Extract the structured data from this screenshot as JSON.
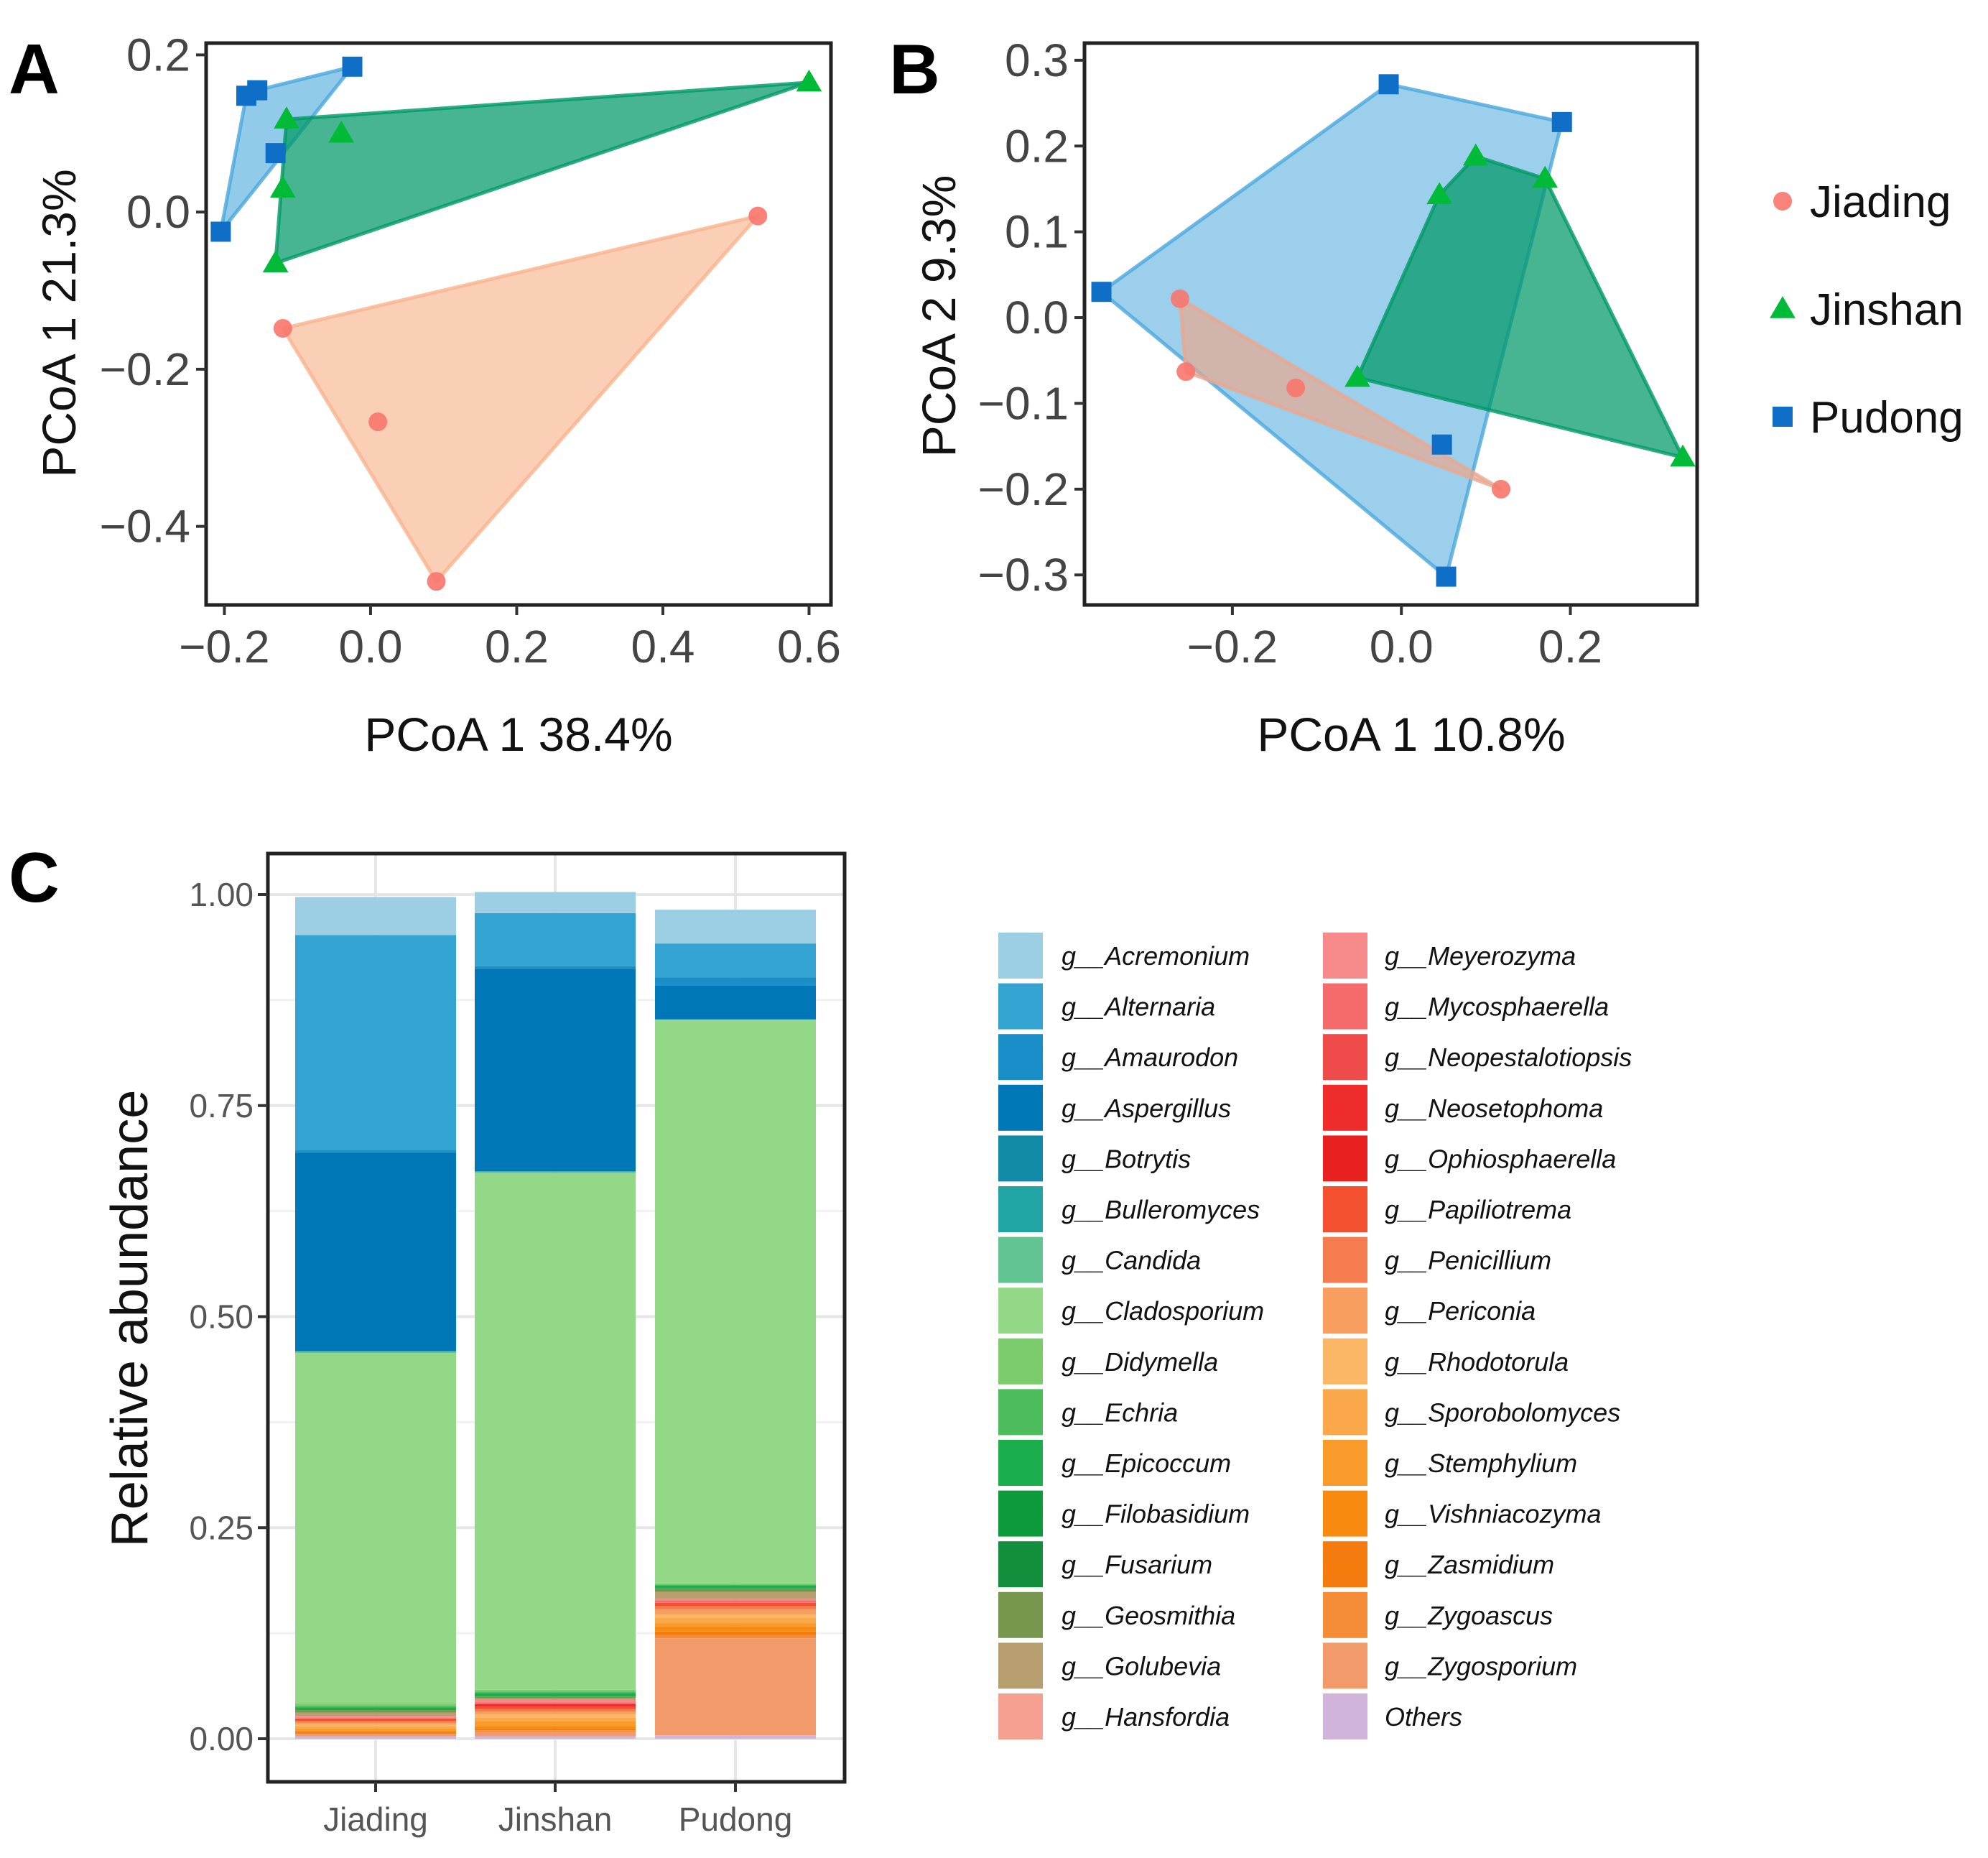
{
  "colors": {
    "Jiading": "#f8766d",
    "Jinshan": "#00ba38",
    "Pudong": "#0f6fc6",
    "Jiading_fill": "#f9b48f",
    "Jinshan_fill": "#009966",
    "Pudong_fill": "#4aa8dc",
    "JiadingB_fill": "#e8a890"
  },
  "chart_data": [
    {
      "panel": "A",
      "type": "scatter",
      "xlabel": "PCoA 1    38.4%",
      "ylabel": "PCoA 1   21.3%",
      "xlim": [
        -0.225,
        0.63
      ],
      "ylim": [
        -0.5,
        0.215
      ],
      "xticks": [
        -0.2,
        0.0,
        0.2,
        0.4,
        0.6
      ],
      "xtick_labels": [
        "−0.2",
        "0.0",
        "0.2",
        "0.4",
        "0.6"
      ],
      "yticks": [
        0.2,
        0.0,
        -0.2,
        -0.4
      ],
      "ytick_labels": [
        "0.2",
        "0.0",
        "−0.2",
        "−0.4"
      ],
      "series": [
        {
          "name": "Jiading",
          "marker": "circle",
          "x": [
            0.53,
            -0.12,
            0.01,
            0.09
          ],
          "y": [
            -0.005,
            -0.148,
            -0.267,
            -0.47
          ],
          "hull": [
            0,
            3,
            1
          ]
        },
        {
          "name": "Jinshan",
          "marker": "triangle",
          "x": [
            0.6,
            -0.115,
            -0.04,
            -0.12,
            -0.13
          ],
          "y": [
            0.165,
            0.118,
            0.1,
            0.03,
            -0.065
          ],
          "hull": [
            0,
            4,
            1
          ]
        },
        {
          "name": "Pudong",
          "marker": "square",
          "x": [
            -0.025,
            -0.17,
            -0.155,
            -0.13,
            -0.205
          ],
          "y": [
            0.185,
            0.148,
            0.155,
            0.075,
            -0.025
          ],
          "hull": [
            0,
            4,
            1,
            2
          ]
        }
      ]
    },
    {
      "panel": "B",
      "type": "scatter",
      "xlabel": "PCoA 1    10.8%",
      "ylabel": "PCoA 2    9.3%",
      "xlim": [
        -0.375,
        0.35
      ],
      "ylim": [
        -0.335,
        0.32
      ],
      "xticks": [
        -0.2,
        0.0,
        0.2
      ],
      "xtick_labels": [
        "−0.2",
        "0.0",
        "0.2"
      ],
      "yticks": [
        0.3,
        0.2,
        0.1,
        0.0,
        -0.1,
        -0.2,
        -0.3
      ],
      "ytick_labels": [
        "0.3",
        "0.2",
        "0.1",
        "0.0",
        "−0.1",
        "−0.2",
        "−0.3"
      ],
      "series": [
        {
          "name": "Jiading",
          "marker": "circle",
          "x": [
            -0.262,
            -0.255,
            -0.125,
            0.118
          ],
          "y": [
            0.022,
            -0.063,
            -0.082,
            -0.2
          ],
          "hull": [
            0,
            1,
            3
          ]
        },
        {
          "name": "Jinshan",
          "marker": "triangle",
          "x": [
            0.088,
            0.17,
            0.045,
            -0.052,
            0.333
          ],
          "y": [
            0.188,
            0.162,
            0.143,
            -0.07,
            -0.163
          ],
          "hull": [
            0,
            1,
            4,
            3,
            2
          ]
        },
        {
          "name": "Pudong",
          "marker": "square",
          "x": [
            -0.015,
            0.19,
            -0.355,
            0.048,
            0.053
          ],
          "y": [
            0.272,
            0.228,
            0.03,
            -0.148,
            -0.302
          ],
          "hull": [
            0,
            1,
            4,
            2
          ]
        }
      ]
    },
    {
      "panel": "C",
      "type": "bar",
      "stacked": true,
      "ylabel": "Relative abundance",
      "ylim": [
        0,
        1.0
      ],
      "yticks": [
        0.0,
        0.25,
        0.5,
        0.75,
        1.0
      ],
      "ytick_labels": [
        "0.00",
        "0.25",
        "0.50",
        "0.75",
        "1.00"
      ],
      "categories": [
        "Jiading",
        "Jinshan",
        "Pudong"
      ],
      "series": [
        {
          "name": "g__Acremonium",
          "color": "#9ccfe3",
          "values": [
            0.045,
            0.025,
            0.04
          ]
        },
        {
          "name": "g__Alternaria",
          "color": "#33a4d2",
          "values": [
            0.255,
            0.063,
            0.04
          ]
        },
        {
          "name": "g__Amaurodon",
          "color": "#1a8ec9",
          "values": [
            0.003,
            0.003,
            0.01
          ]
        },
        {
          "name": "g__Aspergillus",
          "color": "#0077b6",
          "values": [
            0.235,
            0.24,
            0.04
          ]
        },
        {
          "name": "g__Botrytis",
          "color": "#118aa8",
          "values": [
            0.0,
            0.0,
            0.0
          ]
        },
        {
          "name": "g__Bulleromyces",
          "color": "#20a5a4",
          "values": [
            0.0,
            0.0,
            0.0
          ]
        },
        {
          "name": "g__Candida",
          "color": "#62c393",
          "values": [
            0.002,
            0.002,
            0.0
          ]
        },
        {
          "name": "g__Cladosporium",
          "color": "#92d886",
          "values": [
            0.415,
            0.612,
            0.668
          ]
        },
        {
          "name": "g__Didymella",
          "color": "#7ccc6c",
          "values": [
            0.003,
            0.002,
            0.002
          ]
        },
        {
          "name": "g__Echria",
          "color": "#4cbc5c",
          "values": [
            0.002,
            0.002,
            0.0
          ]
        },
        {
          "name": "g__Epicoccum",
          "color": "#1aaf4c",
          "values": [
            0.003,
            0.004,
            0.004
          ]
        },
        {
          "name": "g__Filobasidium",
          "color": "#0c9a3a",
          "values": [
            0.0,
            0.0,
            0.0
          ]
        },
        {
          "name": "g__Fusarium",
          "color": "#138e3d",
          "values": [
            0.0,
            0.0,
            0.0
          ]
        },
        {
          "name": "g__Geosmithia",
          "color": "#76974d",
          "values": [
            0.003,
            0.002,
            0.004
          ]
        },
        {
          "name": "g__Golubevia",
          "color": "#b79e6e",
          "values": [
            0.004,
            0.002,
            0.008
          ]
        },
        {
          "name": "g__Hansfordia",
          "color": "#f5a090",
          "values": [
            0.0,
            0.0,
            0.0
          ]
        },
        {
          "name": "g__Meyerozyma",
          "color": "#f78a8a",
          "values": [
            0.003,
            0.003,
            0.002
          ]
        },
        {
          "name": "g__Mycosphaerella",
          "color": "#f56b6b",
          "values": [
            0.0,
            0.002,
            0.003
          ]
        },
        {
          "name": "g__Neopestalotiopsis",
          "color": "#f04b4b",
          "values": [
            0.0,
            0.0,
            0.0
          ]
        },
        {
          "name": "g__Neosetophoma",
          "color": "#ee2c2c",
          "values": [
            0.0,
            0.003,
            0.0
          ]
        },
        {
          "name": "g__Ophiosphaerella",
          "color": "#e82020",
          "values": [
            0.0,
            0.0,
            0.0
          ]
        },
        {
          "name": "g__Papiliotrema",
          "color": "#f2502f",
          "values": [
            0.003,
            0.003,
            0.004
          ]
        },
        {
          "name": "g__Penicillium",
          "color": "#f57c4f",
          "values": [
            0.002,
            0.003,
            0.004
          ]
        },
        {
          "name": "g__Periconia",
          "color": "#f89f5f",
          "values": [
            0.002,
            0.003,
            0.006
          ]
        },
        {
          "name": "g__Rhodotorula",
          "color": "#fbb765",
          "values": [
            0.002,
            0.004,
            0.004
          ]
        },
        {
          "name": "g__Sporobolomyces",
          "color": "#fba84a",
          "values": [
            0.003,
            0.004,
            0.006
          ]
        },
        {
          "name": "g__Stemphylium",
          "color": "#f99b2a",
          "values": [
            0.002,
            0.006,
            0.004
          ]
        },
        {
          "name": "g__Vishniacozyma",
          "color": "#f88a10",
          "values": [
            0.002,
            0.003,
            0.006
          ]
        },
        {
          "name": "g__Zasmidium",
          "color": "#f47c0e",
          "values": [
            0.002,
            0.002,
            0.004
          ]
        },
        {
          "name": "g__Zygoascus",
          "color": "#f48c38",
          "values": [
            0.0,
            0.002,
            0.004
          ]
        },
        {
          "name": "g__Zygosporium",
          "color": "#f39a6a",
          "values": [
            0.003,
            0.005,
            0.115
          ]
        },
        {
          "name": "Others",
          "color": "#d1b4dc",
          "values": [
            0.003,
            0.003,
            0.004
          ]
        }
      ]
    }
  ],
  "legend_ab": [
    "Jiading",
    "Jinshan",
    "Pudong"
  ],
  "labels": {
    "panel_a": "A",
    "panel_b": "B",
    "panel_c": "C"
  }
}
